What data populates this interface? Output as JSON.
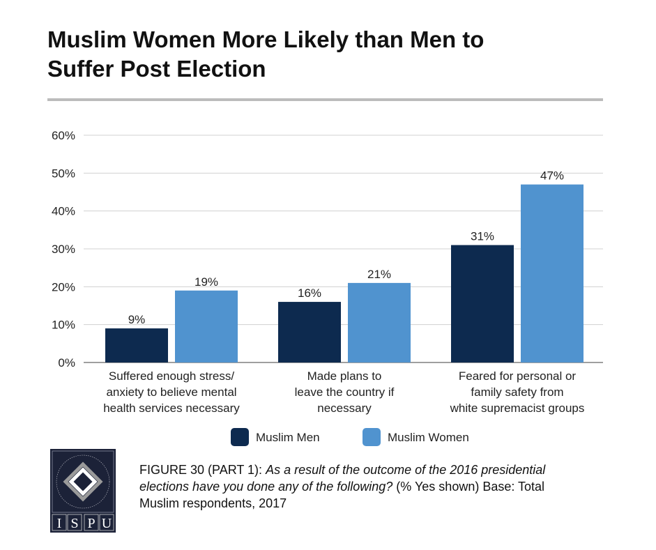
{
  "title_lines": [
    "Muslim Women More Likely than Men to",
    "Suffer Post Election"
  ],
  "chart_data": {
    "type": "bar",
    "categories": [
      [
        "Suffered enough stress/",
        "anxiety to believe mental",
        "health services necessary"
      ],
      [
        "Made plans to",
        "leave the country if",
        "necessary"
      ],
      [
        "Feared for personal or",
        "family safety from",
        "white supremacist groups"
      ]
    ],
    "series": [
      {
        "name": "Muslim Men",
        "values": [
          9,
          16,
          31
        ],
        "color": "#0d2a4f"
      },
      {
        "name": "Muslim Women",
        "values": [
          19,
          21,
          47
        ],
        "color": "#5093cf"
      }
    ],
    "data_labels": [
      [
        "9%",
        "16%",
        "31%"
      ],
      [
        "19%",
        "21%",
        "47%"
      ]
    ],
    "ylim": [
      0,
      60
    ],
    "yticks": [
      "0%",
      "10%",
      "20%",
      "30%",
      "40%",
      "50%",
      "60%"
    ],
    "grid": true,
    "legend": "bottom"
  },
  "caption": {
    "label": "FIGURE 30 (PART 1)",
    "sep": ": ",
    "question": "As a result of the outcome of the 2016 presidential elections have you done any of the following?",
    "note": " (% Yes shown) Base: Total Muslim respondents, 2017"
  },
  "logo": {
    "ring_text": "INSTITUTE FOR SOCIAL POLICY AND UNDERSTANDING",
    "letters": [
      "I",
      "S",
      "P",
      "U"
    ]
  }
}
